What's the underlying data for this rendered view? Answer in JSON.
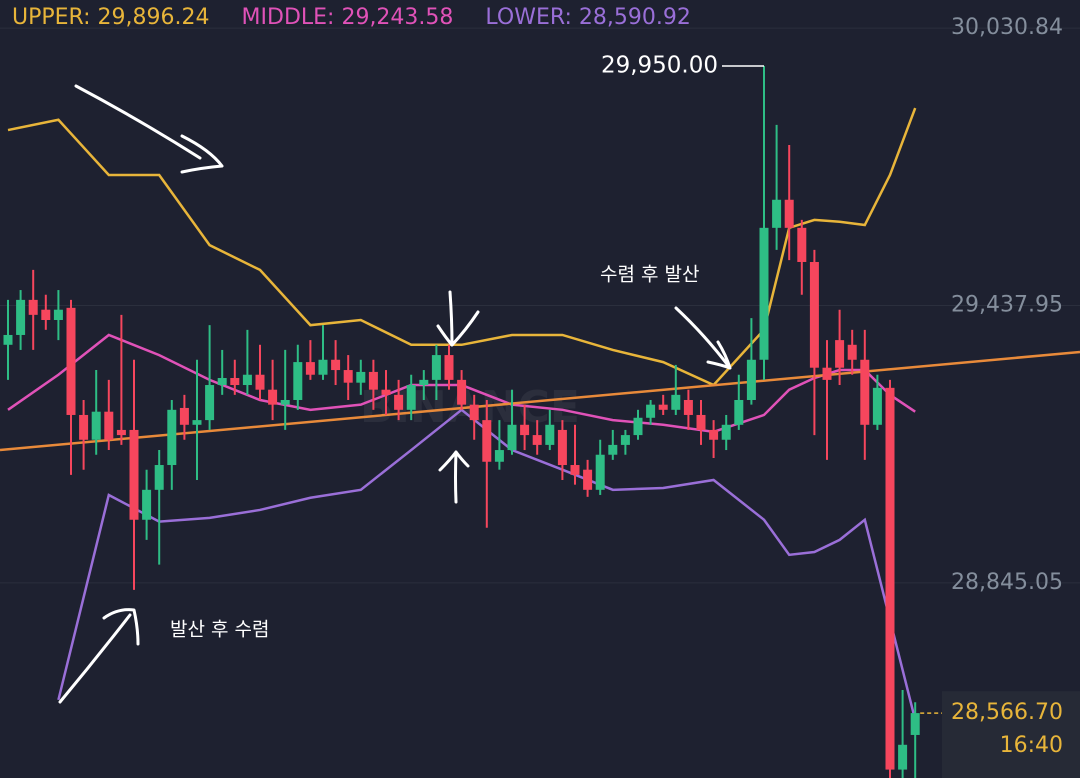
{
  "chart_data": {
    "type": "candlestick",
    "watermark": "BINANCE",
    "ylim": [
      28428,
      30091
    ],
    "yticks": [
      {
        "value": 30030.84,
        "label": "30,030.84"
      },
      {
        "value": 29437.95,
        "label": "29,437.95"
      },
      {
        "value": 28845.05,
        "label": "28,845.05"
      }
    ],
    "grid": true,
    "up_color": "#2ebd85",
    "down_color": "#f6465d",
    "open": [
      29354,
      29375,
      29450,
      29429,
      29407,
      29433,
      29204,
      29151,
      29211,
      29172,
      29172,
      28980,
      29044,
      29097,
      29219,
      29183,
      29193,
      29268,
      29283,
      29268,
      29290,
      29258,
      29226,
      29236,
      29317,
      29290,
      29322,
      29300,
      29273,
      29296,
      29258,
      29247,
      29215,
      29268,
      29279,
      29332,
      29279,
      29226,
      29193,
      29104,
      29129,
      29183,
      29161,
      29140,
      29172,
      29097,
      29087,
      29044,
      29119,
      29140,
      29161,
      29198,
      29226,
      29215,
      29236,
      29204,
      29172,
      29151,
      29183,
      29236,
      29322,
      29604,
      29664,
      29604,
      29531,
      29305,
      29364,
      29354,
      29322,
      29183,
      29262,
      28446,
      28520
    ],
    "high": [
      29450,
      29471,
      29514,
      29461,
      29471,
      29450,
      29236,
      29300,
      29279,
      29418,
      29322,
      29087,
      29129,
      29236,
      29247,
      29322,
      29396,
      29343,
      29322,
      29386,
      29354,
      29322,
      29343,
      29354,
      29364,
      29396,
      29364,
      29332,
      29322,
      29322,
      29300,
      29279,
      29290,
      29300,
      29354,
      29354,
      29300,
      29247,
      29236,
      29193,
      29258,
      29226,
      29193,
      29215,
      29193,
      29183,
      29108,
      29151,
      29172,
      29172,
      29215,
      29236,
      29247,
      29311,
      29258,
      29236,
      29193,
      29204,
      29290,
      29411,
      29950,
      29824,
      29781,
      29621,
      29557,
      29364,
      29429,
      29386,
      29386,
      29290,
      29279,
      28616,
      28590
    ],
    "low": [
      29279,
      29343,
      29343,
      29386,
      29364,
      29076,
      29087,
      29119,
      29129,
      29140,
      28830,
      28937,
      28884,
      29044,
      29151,
      29065,
      29172,
      29247,
      29247,
      29247,
      29236,
      29193,
      29172,
      29215,
      29279,
      29279,
      29268,
      29236,
      29247,
      29215,
      29204,
      29193,
      29193,
      29236,
      29236,
      29258,
      29215,
      29151,
      28963,
      29087,
      29119,
      29129,
      29119,
      29129,
      29065,
      29055,
      29029,
      29033,
      29108,
      29119,
      29151,
      29183,
      29204,
      29204,
      29172,
      29140,
      29112,
      29129,
      29172,
      29226,
      29279,
      29557,
      29535,
      29461,
      29161,
      29108,
      29268,
      29290,
      29108,
      29172,
      28428,
      28428,
      28428
    ],
    "close": [
      29375,
      29450,
      29418,
      29407,
      29429,
      29204,
      29151,
      29211,
      29151,
      29161,
      28980,
      29044,
      29097,
      29215,
      29183,
      29193,
      29268,
      29283,
      29268,
      29290,
      29258,
      29226,
      29236,
      29317,
      29290,
      29322,
      29300,
      29273,
      29296,
      29258,
      29247,
      29215,
      29268,
      29279,
      29332,
      29279,
      29226,
      29193,
      29104,
      29129,
      29183,
      29161,
      29140,
      29183,
      29097,
      29076,
      29044,
      29119,
      29140,
      29161,
      29198,
      29226,
      29215,
      29247,
      29204,
      29172,
      29151,
      29183,
      29236,
      29322,
      29604,
      29664,
      29604,
      29531,
      29305,
      29279,
      29305,
      29322,
      29183,
      29262,
      28446,
      28499,
      28566.7
    ],
    "series": [
      {
        "label": "UPPER: 29,896.24",
        "color": "#e8b53a",
        "x": [
          0,
          4,
          8,
          12,
          16,
          20,
          24,
          28,
          32,
          36,
          40,
          44,
          48,
          52,
          56,
          60,
          62,
          64,
          66,
          68,
          70,
          72
        ],
        "values": [
          29813,
          29835,
          29717,
          29717,
          29567,
          29514,
          29396,
          29407,
          29354,
          29354,
          29375,
          29375,
          29343,
          29317,
          29268,
          29386,
          29604,
          29621,
          29617,
          29610,
          29717,
          29860
        ]
      },
      {
        "label": "MIDDLE: 29,243.58",
        "color": "#e052b8",
        "x": [
          0,
          4,
          8,
          12,
          16,
          20,
          24,
          28,
          32,
          36,
          40,
          44,
          48,
          52,
          56,
          60,
          62,
          64,
          66,
          68,
          70,
          72
        ],
        "values": [
          29215,
          29290,
          29375,
          29332,
          29279,
          29236,
          29215,
          29226,
          29268,
          29268,
          29226,
          29215,
          29193,
          29183,
          29168,
          29204,
          29258,
          29283,
          29300,
          29300,
          29247,
          29211
        ]
      },
      {
        "label": "LOWER: 28,590.92",
        "color": "#9a6fd8",
        "x": [
          4,
          8,
          12,
          16,
          20,
          24,
          28,
          32,
          36,
          40,
          44,
          48,
          52,
          56,
          60,
          62,
          64,
          66,
          68,
          70,
          72
        ],
        "values": [
          28595,
          29033,
          28976,
          28984,
          29001,
          29027,
          29044,
          29129,
          29215,
          29129,
          29087,
          29044,
          29048,
          29065,
          28980,
          28905,
          28911,
          28937,
          28980,
          28766,
          28552
        ]
      }
    ],
    "high_annotation": {
      "value": 29950,
      "label": "29,950.00"
    },
    "last_price": {
      "value": 28566.7,
      "label": "28,566.70"
    },
    "time_label": "16:40",
    "annotations": [
      "발산 후 수렴",
      "수렴 후 발산"
    ]
  }
}
